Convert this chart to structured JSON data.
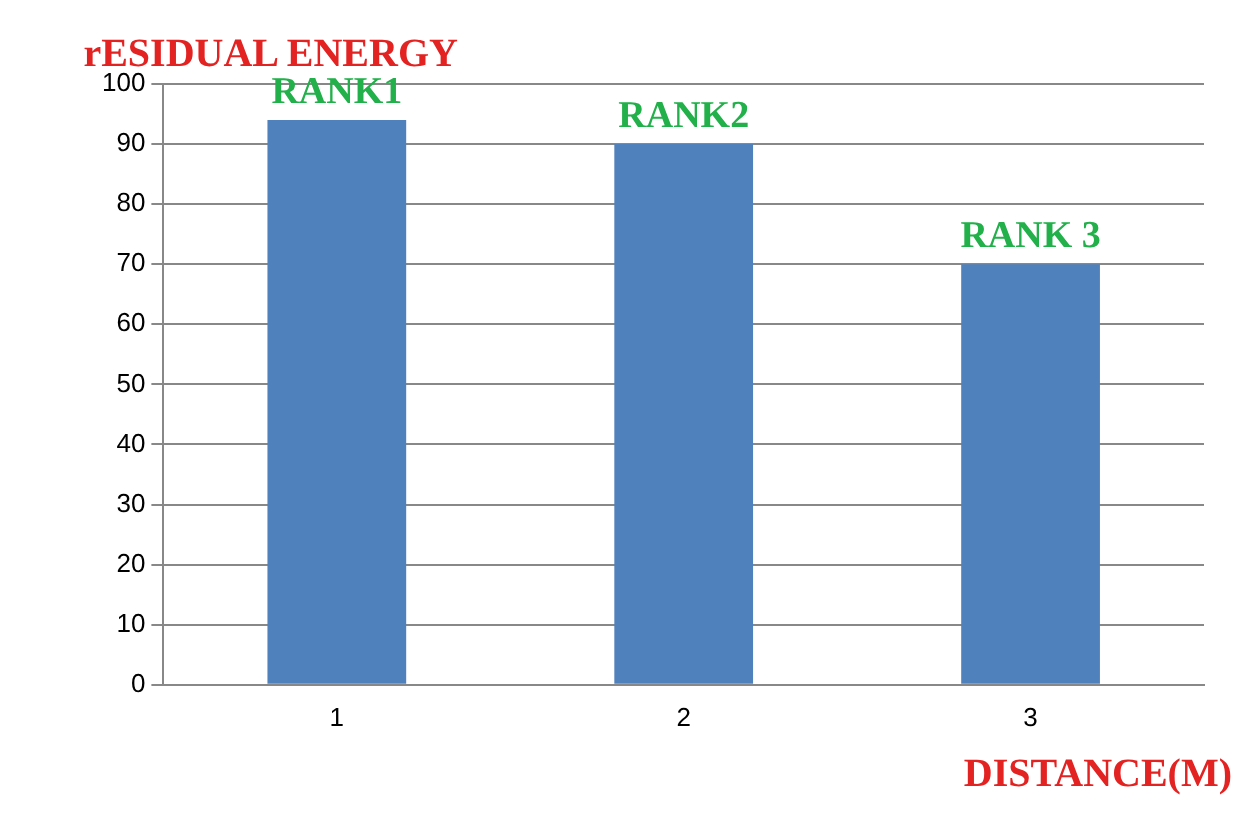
{
  "chart_data": {
    "type": "bar",
    "ylabel": "rESIDUAL ENERGY",
    "xlabel": "DISTANCE(M)",
    "categories": [
      "1",
      "2",
      "3"
    ],
    "values": [
      94,
      90,
      70
    ],
    "color": "#4f81bd",
    "ylim": [
      0,
      100
    ],
    "yticks": [
      0,
      10,
      20,
      30,
      40,
      50,
      60,
      70,
      80,
      90,
      100
    ],
    "grid": "y",
    "legend": false,
    "annotations": [
      "RANK1",
      "RANK2",
      "RANK 3"
    ]
  }
}
